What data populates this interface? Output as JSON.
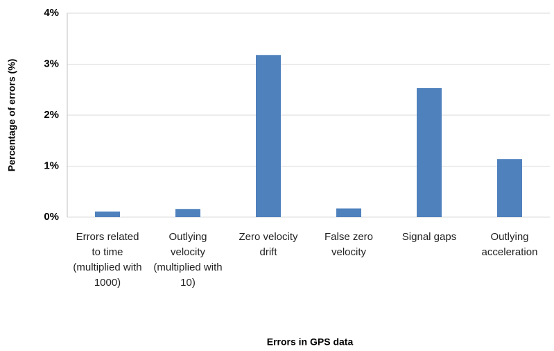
{
  "chart_data": {
    "type": "bar",
    "x_label": "Errors in GPS data",
    "y_label": "Percentage of errors (%)",
    "categories": [
      "Errors related to time (multiplied with 1000)",
      "Outlying velocity (multiplied with 10)",
      "Zero velocity drift",
      "False zero velocity",
      "Signal gaps",
      "Outlying acceleration"
    ],
    "values": [
      0.11,
      0.16,
      3.18,
      0.17,
      2.53,
      1.14
    ],
    "color": "#4f81bd",
    "ylim": [
      0,
      4
    ],
    "yticks": [
      {
        "value": 0,
        "label": "0%"
      },
      {
        "value": 1,
        "label": "1%"
      },
      {
        "value": 2,
        "label": "2%"
      },
      {
        "value": 3,
        "label": "3%"
      },
      {
        "value": 4,
        "label": "4%"
      }
    ],
    "grid": true
  }
}
